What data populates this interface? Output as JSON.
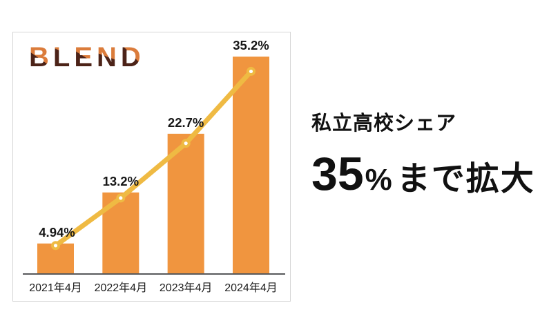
{
  "logo": {
    "text": "BLEND",
    "color_orange": "#DB7C3B",
    "color_brown": "#4C2318"
  },
  "headline": {
    "title": "私立高校シェア",
    "number": "35",
    "percent_sign": "%",
    "suffix": "まで拡大",
    "text_color": "#111111"
  },
  "chart_data": {
    "type": "bar",
    "title": "",
    "xlabel": "",
    "ylabel": "",
    "categories": [
      "2021年4月",
      "2022年4月",
      "2023年4月",
      "2024年4月"
    ],
    "values": [
      4.94,
      13.2,
      22.7,
      35.2
    ],
    "value_labels": [
      "4.94%",
      "13.2%",
      "22.7%",
      "35.2%"
    ],
    "overlay_line": {
      "type": "line",
      "x": [
        "2021年4月",
        "2022年4月",
        "2023年4月",
        "2024年4月"
      ],
      "values": [
        4.94,
        13.2,
        22.7,
        35.2
      ]
    },
    "ylim": [
      0,
      39.1
    ],
    "grid": false,
    "legend": "none",
    "bar_color": "#F0953F",
    "line_color": "#EFBA43",
    "marker_fill": "#FFFFFF",
    "value_label_color": "#171717",
    "category_label_color": "#1c1c1c",
    "axis_color": "#57585A"
  }
}
